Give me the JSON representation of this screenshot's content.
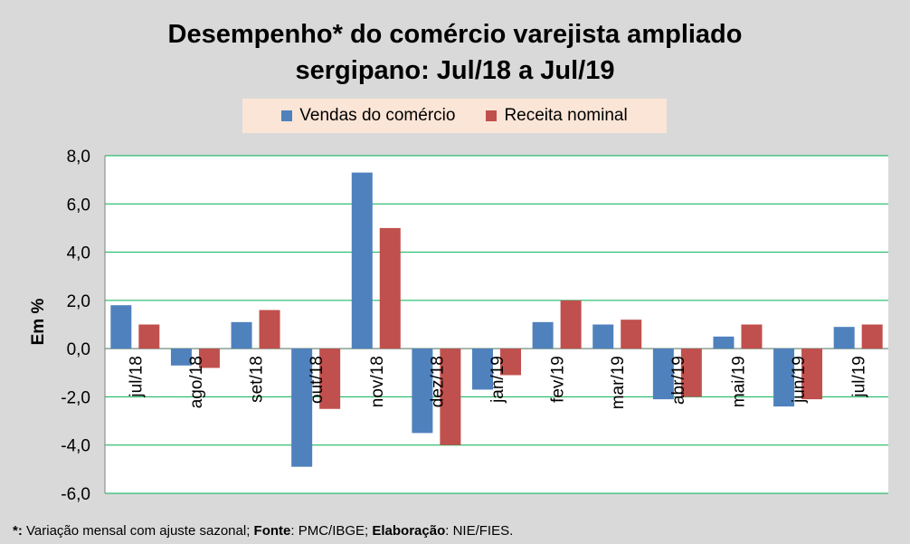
{
  "chart_data": {
    "type": "bar",
    "title_line1": "Desempenho* do comércio varejista ampliado",
    "title_line2": "sergipano: Jul/18 a Jul/19",
    "ylabel": "Em %",
    "ylim": [
      -6,
      8
    ],
    "yticks": [
      "8,0",
      "6,0",
      "4,0",
      "2,0",
      "0,0",
      "-2,0",
      "-4,0",
      "-6,0"
    ],
    "ytick_values": [
      8,
      6,
      4,
      2,
      0,
      -2,
      -4,
      -6
    ],
    "categories": [
      "jul/18",
      "ago/18",
      "set/18",
      "out/18",
      "nov/18",
      "dez/18",
      "jan/19",
      "fev/19",
      "mar/19",
      "abr/19",
      "mai/19",
      "jun/19",
      "jul/19"
    ],
    "series": [
      {
        "name": "Vendas do comércio",
        "color": "#4f81bd",
        "values": [
          1.8,
          -0.7,
          1.1,
          -4.9,
          7.3,
          -3.5,
          -1.7,
          1.1,
          1.0,
          -2.1,
          0.5,
          -2.4,
          0.9
        ]
      },
      {
        "name": "Receita nominal",
        "color": "#c0504d",
        "values": [
          1.0,
          -0.8,
          1.6,
          -2.5,
          5.0,
          -4.0,
          -1.1,
          2.0,
          1.2,
          -2.0,
          1.0,
          -2.1,
          1.0
        ]
      }
    ],
    "grid": true,
    "legend": "top"
  },
  "footnote": {
    "mark": "*:",
    "text1": " Variação mensal com ajuste sazonal; ",
    "source_label": "Fonte",
    "source_text": ": PMC/IBGE; ",
    "author_label": "Elaboração",
    "author_text": ": NIE/FIES."
  },
  "colors": {
    "grid": "#00b050",
    "plot_bg": "#ffffff",
    "page_bg": "#d9d9d9",
    "legend_bg": "#fbe5d6"
  }
}
